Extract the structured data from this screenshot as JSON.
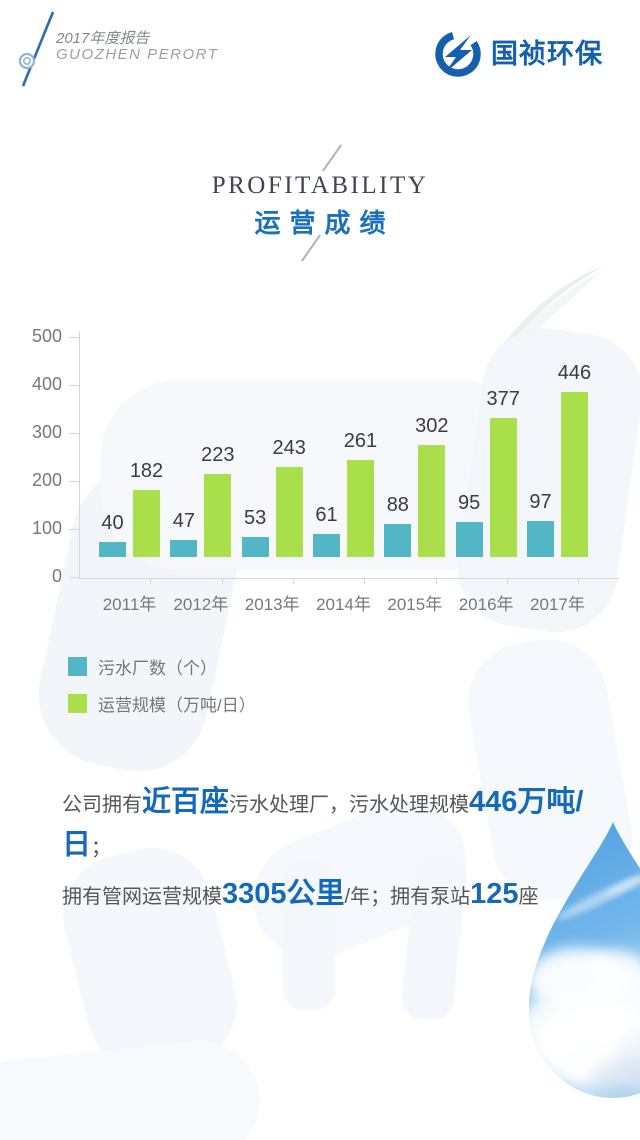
{
  "header": {
    "report_title_cn": "2017年度报告",
    "report_title_en": "GUOZHEN PERORT",
    "logo_text": "国祯环保"
  },
  "section": {
    "title_en": "PROFITABILITY",
    "title_cn": "运营成绩"
  },
  "chart_data": {
    "type": "bar",
    "categories": [
      "2011年",
      "2012年",
      "2013年",
      "2014年",
      "2015年",
      "2016年",
      "2017年"
    ],
    "series": [
      {
        "name": "污水厂数（个）",
        "color": "#53b6c4",
        "values": [
          40,
          47,
          53,
          61,
          88,
          95,
          97
        ]
      },
      {
        "name": "运营规模（万吨/日）",
        "color": "#a9df4b",
        "values": [
          182,
          223,
          243,
          261,
          302,
          377,
          446
        ]
      }
    ],
    "yticks": [
      0,
      100,
      200,
      300,
      400,
      500
    ],
    "ylim": [
      0,
      500
    ],
    "grid": false,
    "legend_position": "bottom-left",
    "value_labels": true
  },
  "summary": {
    "lines": [
      [
        {
          "t": "公司拥有",
          "em": false
        },
        {
          "t": "近百座",
          "em": true
        },
        {
          "t": "污水处理厂，污水处理规模",
          "em": false
        },
        {
          "t": "446万吨/日",
          "em": true
        },
        {
          "t": "；",
          "em": false
        }
      ],
      [
        {
          "t": "拥有管网运营规模",
          "em": false
        },
        {
          "t": "3305公里",
          "em": true
        },
        {
          "t": "/年；拥有泵站",
          "em": false
        },
        {
          "t": "125",
          "em": true
        },
        {
          "t": "座",
          "em": false
        }
      ]
    ]
  },
  "colors": {
    "accent_blue": "#1569ba",
    "logo_blue": "#1460ae",
    "axis_gray": "#75787d"
  }
}
